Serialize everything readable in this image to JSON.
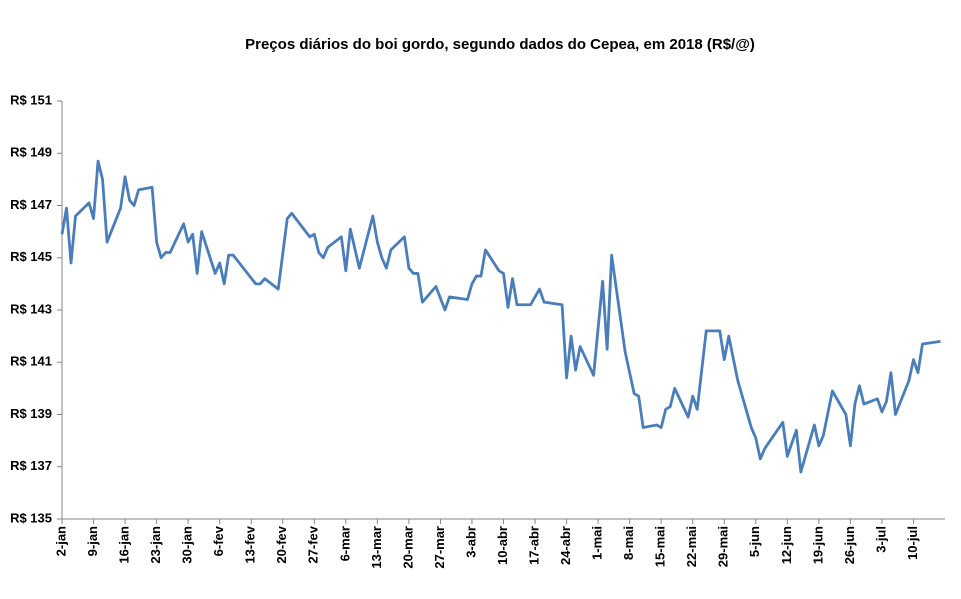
{
  "chart_data": {
    "type": "line",
    "title": "Preços diários do boi gordo, segundo dados do Cepea, em 2018 (R$/@)",
    "x": [
      0,
      1,
      2,
      3,
      6,
      7,
      8,
      9,
      10,
      13,
      14,
      15,
      16,
      17,
      20,
      21,
      22,
      23,
      24,
      27,
      28,
      29,
      30,
      31,
      34,
      35,
      36,
      37,
      38,
      43,
      44,
      45,
      48,
      50,
      51,
      55,
      56,
      57,
      58,
      59,
      62,
      63,
      64,
      66,
      69,
      70,
      71,
      72,
      73,
      76,
      77,
      78,
      79,
      80,
      83,
      85,
      86,
      90,
      91,
      92,
      93,
      94,
      97,
      98,
      99,
      100,
      101,
      104,
      106,
      107,
      111,
      112,
      113,
      114,
      115,
      118,
      120,
      121,
      122,
      125,
      126,
      127,
      128,
      129,
      132,
      133,
      134,
      135,
      136,
      139,
      140,
      141,
      143,
      146,
      147,
      148,
      150,
      153,
      154,
      155,
      156,
      160,
      161,
      163,
      164,
      167,
      168,
      169,
      171,
      174,
      175,
      176,
      177,
      178,
      181,
      182,
      183,
      184,
      185,
      188,
      189,
      190,
      191,
      195
    ],
    "values": [
      145.9,
      146.9,
      144.8,
      146.6,
      147.1,
      146.5,
      148.7,
      148.0,
      145.6,
      146.9,
      148.1,
      147.2,
      147.0,
      147.6,
      147.7,
      145.6,
      145.0,
      145.2,
      145.2,
      146.3,
      145.6,
      145.9,
      144.4,
      146.0,
      144.4,
      144.8,
      144.0,
      145.1,
      145.1,
      144.0,
      144.0,
      144.2,
      143.8,
      146.5,
      146.7,
      145.8,
      145.9,
      145.2,
      145.0,
      145.4,
      145.8,
      144.5,
      146.1,
      144.6,
      146.6,
      145.6,
      145.0,
      144.6,
      145.3,
      145.8,
      144.6,
      144.4,
      144.4,
      143.3,
      143.9,
      143.0,
      143.5,
      143.4,
      144.0,
      144.3,
      144.3,
      145.3,
      144.5,
      144.4,
      143.1,
      144.2,
      143.2,
      143.2,
      143.8,
      143.3,
      143.2,
      140.4,
      142.0,
      140.7,
      141.6,
      140.5,
      144.1,
      141.5,
      145.1,
      141.4,
      140.6,
      139.8,
      139.7,
      138.5,
      138.6,
      138.5,
      139.2,
      139.3,
      140.0,
      138.9,
      139.7,
      139.2,
      142.2,
      142.2,
      141.1,
      142.0,
      140.3,
      138.5,
      138.1,
      137.3,
      137.7,
      138.7,
      137.4,
      138.4,
      136.8,
      138.6,
      137.8,
      138.2,
      139.9,
      139.0,
      137.8,
      139.4,
      140.1,
      139.4,
      139.6,
      139.1,
      139.5,
      140.6,
      139.0,
      140.3,
      141.1,
      140.6,
      141.7,
      141.8
    ],
    "color": "#4a7ebb",
    "xlim": [
      0,
      196
    ],
    "xticks": [
      {
        "value": 0,
        "label": "2-jan"
      },
      {
        "value": 7,
        "label": "9-jan"
      },
      {
        "value": 14,
        "label": "16-jan"
      },
      {
        "value": 21,
        "label": "23-jan"
      },
      {
        "value": 28,
        "label": "30-jan"
      },
      {
        "value": 35,
        "label": "6-fev"
      },
      {
        "value": 42,
        "label": "13-fev"
      },
      {
        "value": 49,
        "label": "20-fev"
      },
      {
        "value": 56,
        "label": "27-fev"
      },
      {
        "value": 63,
        "label": "6-mar"
      },
      {
        "value": 70,
        "label": "13-mar"
      },
      {
        "value": 77,
        "label": "20-mar"
      },
      {
        "value": 84,
        "label": "27-mar"
      },
      {
        "value": 91,
        "label": "3-abr"
      },
      {
        "value": 98,
        "label": "10-abr"
      },
      {
        "value": 105,
        "label": "17-abr"
      },
      {
        "value": 112,
        "label": "24-abr"
      },
      {
        "value": 119,
        "label": "1-mai"
      },
      {
        "value": 126,
        "label": "8-mai"
      },
      {
        "value": 133,
        "label": "15-mai"
      },
      {
        "value": 140,
        "label": "22-mai"
      },
      {
        "value": 147,
        "label": "29-mai"
      },
      {
        "value": 154,
        "label": "5-jun"
      },
      {
        "value": 161,
        "label": "12-jun"
      },
      {
        "value": 168,
        "label": "19-jun"
      },
      {
        "value": 175,
        "label": "26-jun"
      },
      {
        "value": 182,
        "label": "3-jul"
      },
      {
        "value": 189,
        "label": "10-jul"
      }
    ],
    "ylim": [
      135,
      151
    ],
    "yticks": [
      {
        "value": 135,
        "label": "R$ 135"
      },
      {
        "value": 137,
        "label": "R$ 137"
      },
      {
        "value": 139,
        "label": "R$ 139"
      },
      {
        "value": 141,
        "label": "R$ 141"
      },
      {
        "value": 143,
        "label": "R$ 143"
      },
      {
        "value": 145,
        "label": "R$ 145"
      },
      {
        "value": 147,
        "label": "R$ 147"
      },
      {
        "value": 149,
        "label": "R$ 149"
      },
      {
        "value": 151,
        "label": "R$ 151"
      }
    ],
    "grid": false
  }
}
